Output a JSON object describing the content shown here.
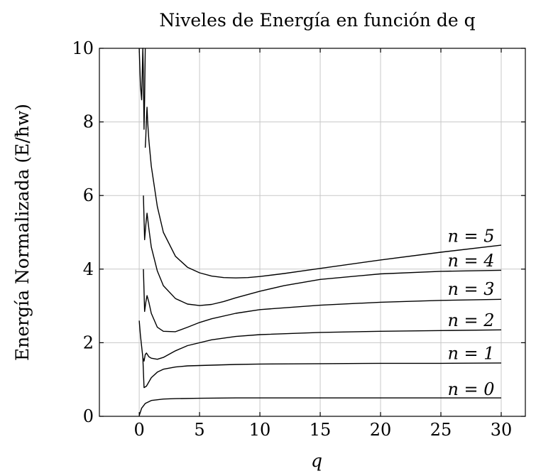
{
  "chart_data": {
    "type": "line",
    "title": "Niveles de Energía en función de q",
    "xlabel": "q",
    "ylabel": "Energía Normalizada (E/ħw)",
    "xlim": [
      -3.3,
      32.0
    ],
    "ylim": [
      0,
      10
    ],
    "xticks": [
      0,
      5,
      10,
      15,
      20,
      25,
      30
    ],
    "yticks": [
      0,
      2,
      4,
      6,
      8,
      10
    ],
    "grid": true,
    "series": [
      {
        "name": "n = 0",
        "x": [
          0.0,
          0.2,
          0.5,
          1.0,
          2.0,
          3.0,
          5.0,
          8.0,
          10.0,
          15.0,
          20.0,
          25.0,
          30.0
        ],
        "y": [
          0.02,
          0.22,
          0.35,
          0.43,
          0.47,
          0.48,
          0.49,
          0.5,
          0.5,
          0.5,
          0.5,
          0.5,
          0.5
        ]
      },
      {
        "name": "n = 1",
        "x": [
          0.3,
          0.4,
          0.6,
          1.0,
          1.5,
          2.0,
          3.0,
          4.0,
          6.0,
          8.0,
          10.0,
          15.0,
          20.0,
          25.0,
          30.0
        ],
        "y": [
          1.6,
          0.78,
          0.82,
          1.05,
          1.2,
          1.28,
          1.34,
          1.37,
          1.39,
          1.41,
          1.42,
          1.43,
          1.44,
          1.44,
          1.45
        ]
      },
      {
        "name": "n = 2",
        "x": [
          0.0,
          0.1,
          0.2,
          0.3,
          0.4,
          0.5,
          0.6,
          0.8,
          1.0,
          1.5,
          2.0,
          3.0,
          4.0,
          6.0,
          8.0,
          10.0,
          15.0,
          20.0,
          25.0,
          30.0
        ],
        "y": [
          2.6,
          2.2,
          1.9,
          1.6,
          1.5,
          1.68,
          1.72,
          1.62,
          1.58,
          1.55,
          1.6,
          1.78,
          1.92,
          2.08,
          2.17,
          2.22,
          2.28,
          2.31,
          2.33,
          2.35
        ]
      },
      {
        "name": "n = 3",
        "x": [
          0.35,
          0.45,
          0.55,
          0.65,
          0.8,
          1.0,
          1.5,
          2.0,
          3.0,
          4.0,
          5.0,
          6.0,
          8.0,
          10.0,
          15.0,
          20.0,
          25.0,
          30.0
        ],
        "y": [
          4.0,
          2.85,
          3.1,
          3.28,
          3.1,
          2.8,
          2.42,
          2.31,
          2.3,
          2.42,
          2.55,
          2.65,
          2.8,
          2.9,
          3.02,
          3.1,
          3.15,
          3.18
        ]
      },
      {
        "name": "n = 4",
        "x": [
          0.35,
          0.45,
          0.55,
          0.65,
          0.8,
          1.0,
          1.5,
          2.0,
          3.0,
          4.0,
          5.0,
          6.0,
          7.0,
          8.0,
          10.0,
          12.0,
          15.0,
          20.0,
          25.0,
          30.0
        ],
        "y": [
          6.0,
          4.8,
          5.2,
          5.52,
          5.1,
          4.6,
          3.95,
          3.55,
          3.2,
          3.05,
          3.01,
          3.04,
          3.12,
          3.22,
          3.4,
          3.55,
          3.72,
          3.87,
          3.94,
          3.97
        ]
      },
      {
        "name": "n = 5",
        "x": [
          0.5,
          0.55,
          0.6,
          0.65,
          0.7,
          0.8,
          1.0,
          1.5,
          2.0,
          3.0,
          4.0,
          5.0,
          6.0,
          7.0,
          8.0,
          9.0,
          10.0,
          12.0,
          15.0,
          20.0,
          25.0,
          30.0
        ],
        "y": [
          7.3,
          7.6,
          8.1,
          8.4,
          8.0,
          7.5,
          6.8,
          5.7,
          5.0,
          4.35,
          4.05,
          3.9,
          3.81,
          3.77,
          3.76,
          3.77,
          3.8,
          3.88,
          4.02,
          4.25,
          4.46,
          4.65
        ]
      },
      {
        "name": "",
        "x": [
          0.0,
          0.1,
          0.2,
          0.3,
          0.35,
          0.4,
          0.45,
          0.5
        ],
        "y": [
          10.0,
          9.0,
          8.6,
          10.0,
          9.2,
          7.8,
          8.6,
          10.0
        ]
      }
    ],
    "curve_labels": [
      {
        "text": "n = 0",
        "x": 27.5,
        "y": 0.58
      },
      {
        "text": "n = 1",
        "x": 27.5,
        "y": 1.55
      },
      {
        "text": "n = 2",
        "x": 27.5,
        "y": 2.45
      },
      {
        "text": "n = 3",
        "x": 27.5,
        "y": 3.3
      },
      {
        "text": "n = 4",
        "x": 27.5,
        "y": 4.07
      },
      {
        "text": "n = 5",
        "x": 27.5,
        "y": 4.74
      }
    ]
  }
}
